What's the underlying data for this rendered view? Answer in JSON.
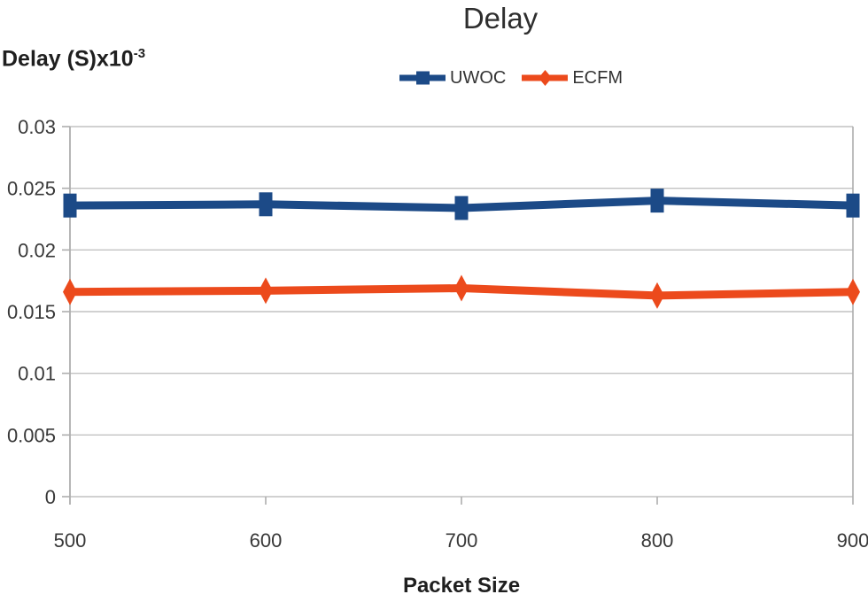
{
  "header": {
    "title": "Delay"
  },
  "y_axis_unit": {
    "text": "Delay (S)x10",
    "superscript": "-3"
  },
  "chart_data": {
    "type": "line",
    "title": "Delay",
    "xlabel": "Packet Size",
    "ylabel": "Delay (S)x10^-3",
    "x": [
      500,
      600,
      700,
      800,
      900
    ],
    "xtick_labels": [
      "500",
      "600",
      "700",
      "800",
      "900"
    ],
    "series": [
      {
        "name": "UWOC",
        "marker": "square",
        "color": "#1c4a87",
        "values": [
          0.0236,
          0.0237,
          0.0234,
          0.024,
          0.0236
        ]
      },
      {
        "name": "ECFM",
        "marker": "diamond",
        "color": "#ec4a1c",
        "values": [
          0.0166,
          0.0167,
          0.0169,
          0.0163,
          0.0166
        ]
      }
    ],
    "ylim": [
      0,
      0.03
    ],
    "yticks": [
      0,
      0.005,
      0.01,
      0.015,
      0.02,
      0.025,
      0.03
    ],
    "ytick_labels": [
      "0",
      "0.005",
      "0.01",
      "0.015",
      "0.02",
      "0.025",
      "0.03"
    ],
    "grid": true,
    "legend_position": "top-center",
    "colors": {
      "gridline": "#c2c2c2",
      "axis": "#aeaeae",
      "tick_text": "#383838"
    }
  }
}
